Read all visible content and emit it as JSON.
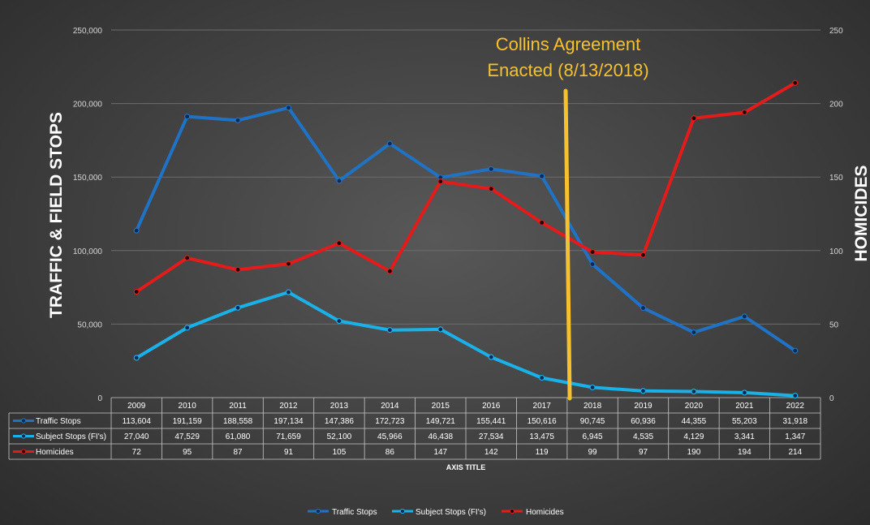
{
  "chart_data": {
    "type": "line",
    "categories": [
      "2009",
      "2010",
      "2011",
      "2012",
      "2013",
      "2014",
      "2015",
      "2016",
      "2017",
      "2018",
      "2019",
      "2020",
      "2021",
      "2022"
    ],
    "series": [
      {
        "name": "Traffic Stops",
        "axis": "left",
        "color": "#1f72c4",
        "values": [
          113604,
          191159,
          188558,
          197134,
          147386,
          172723,
          149721,
          155441,
          150616,
          90745,
          60936,
          44355,
          55203,
          31918
        ],
        "labels": [
          "113,604",
          "191,159",
          "188,558",
          "197,134",
          "147,386",
          "172,723",
          "149,721",
          "155,441",
          "150,616",
          "90,745",
          "60,936",
          "44,355",
          "55,203",
          "31,918"
        ]
      },
      {
        "name": "Subject Stops (FI's)",
        "axis": "left",
        "color": "#1ab0e8",
        "values": [
          27040,
          47529,
          61080,
          71659,
          52100,
          45966,
          46438,
          27534,
          13475,
          6945,
          4535,
          4129,
          3341,
          1347
        ],
        "labels": [
          "27,040",
          "47,529",
          "61,080",
          "71,659",
          "52,100",
          "45,966",
          "46,438",
          "27,534",
          "13,475",
          "6,945",
          "4,535",
          "4,129",
          "3,341",
          "1,347"
        ]
      },
      {
        "name": "Homicides",
        "axis": "right",
        "color": "#e31b1b",
        "values": [
          72,
          95,
          87,
          91,
          105,
          86,
          147,
          142,
          119,
          99,
          97,
          190,
          194,
          214
        ],
        "labels": [
          "72",
          "95",
          "87",
          "91",
          "105",
          "86",
          "147",
          "142",
          "119",
          "99",
          "97",
          "190",
          "194",
          "214"
        ]
      }
    ],
    "y_left": {
      "label": "TRAFFIC & FIELD STOPS",
      "range": [
        0,
        250000
      ],
      "ticks": [
        "0",
        "50,000",
        "100,000",
        "150,000",
        "200,000",
        "250,000"
      ]
    },
    "y_right": {
      "label": "HOMICIDES",
      "range": [
        0,
        250
      ],
      "ticks": [
        "0",
        "50",
        "100",
        "150",
        "200",
        "250"
      ]
    },
    "xlabel": "AXIS TITLE",
    "grid": true,
    "data_table": true,
    "legend": "bottom",
    "annotation": {
      "lines": [
        "Collins Agreement",
        "Enacted (8/13/2018)"
      ],
      "color": "#f7c12e"
    }
  }
}
